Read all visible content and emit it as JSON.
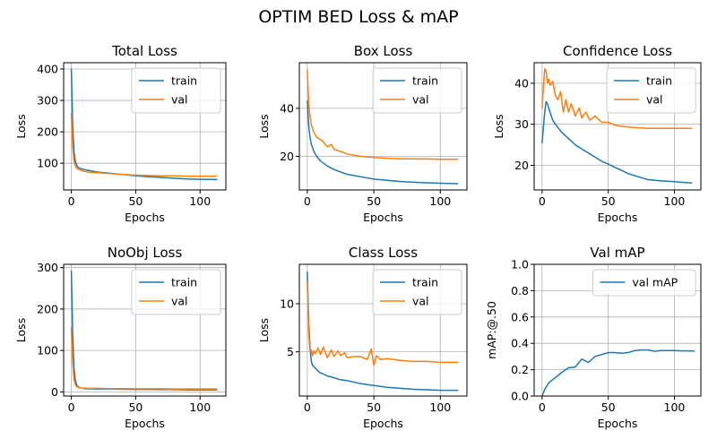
{
  "figure": {
    "title": "OPTIM BED Loss & mAP"
  },
  "colors": {
    "train": "#1f77b4",
    "val": "#ff7f0e"
  },
  "chart_data": [
    {
      "type": "line",
      "title": "Total Loss",
      "xlabel": "Epochs",
      "ylabel": "Loss",
      "xlim": [
        -6,
        120
      ],
      "ylim": [
        15,
        420
      ],
      "xticks": [
        0,
        50,
        100
      ],
      "yticks": [
        100,
        200,
        300,
        400
      ],
      "grid": true,
      "legend": "top-right",
      "series": [
        {
          "name": "train",
          "color": "#1f77b4",
          "x": [
            0,
            1,
            2,
            3,
            4,
            5,
            7,
            10,
            15,
            20,
            30,
            40,
            50,
            60,
            70,
            80,
            90,
            100,
            113
          ],
          "y": [
            400,
            220,
            140,
            108,
            95,
            88,
            83,
            80,
            76,
            72,
            68,
            64,
            60,
            57,
            55,
            52,
            50,
            49,
            48
          ]
        },
        {
          "name": "val",
          "color": "#ff7f0e",
          "x": [
            0,
            1,
            2,
            3,
            4,
            5,
            7,
            10,
            15,
            20,
            30,
            40,
            50,
            60,
            70,
            80,
            90,
            100,
            113
          ],
          "y": [
            258,
            150,
            108,
            92,
            85,
            82,
            78,
            74,
            71,
            70,
            67,
            64,
            62,
            61,
            60,
            60,
            59,
            59,
            59
          ]
        }
      ]
    },
    {
      "type": "line",
      "title": "Box Loss",
      "xlabel": "Epochs",
      "ylabel": "Loss",
      "xlim": [
        -6,
        120
      ],
      "ylim": [
        6,
        59
      ],
      "xticks": [
        0,
        50,
        100
      ],
      "yticks": [
        20,
        40
      ],
      "grid": true,
      "legend": "top-right",
      "series": [
        {
          "name": "train",
          "color": "#1f77b4",
          "x": [
            0,
            1,
            2,
            3,
            5,
            7,
            10,
            15,
            20,
            25,
            30,
            35,
            40,
            50,
            60,
            70,
            80,
            90,
            100,
            113
          ],
          "y": [
            43,
            33,
            28,
            25,
            22,
            20,
            18,
            16,
            14.5,
            13.5,
            12.5,
            12,
            11.5,
            10.5,
            10,
            9.5,
            9.2,
            9,
            8.8,
            8.6
          ]
        },
        {
          "name": "val",
          "color": "#ff7f0e",
          "x": [
            0,
            1,
            2,
            3,
            5,
            7,
            10,
            12,
            15,
            18,
            20,
            25,
            30,
            35,
            40,
            50,
            60,
            70,
            80,
            90,
            100,
            113
          ],
          "y": [
            56,
            42,
            37,
            33,
            30,
            28,
            27,
            26,
            24,
            25,
            23,
            22,
            21,
            20.5,
            20,
            19.5,
            19.2,
            19,
            19,
            18.9,
            18.8,
            18.8
          ]
        }
      ]
    },
    {
      "type": "line",
      "title": "Confidence Loss",
      "xlabel": "Epochs",
      "ylabel": "Loss",
      "xlim": [
        -6,
        120
      ],
      "ylim": [
        14,
        45
      ],
      "xticks": [
        0,
        50,
        100
      ],
      "yticks": [
        20,
        30,
        40
      ],
      "grid": true,
      "legend": "top-right",
      "series": [
        {
          "name": "train",
          "color": "#1f77b4",
          "x": [
            0,
            2,
            3,
            4,
            6,
            8,
            10,
            15,
            20,
            25,
            30,
            35,
            40,
            45,
            50,
            55,
            60,
            65,
            70,
            75,
            80,
            90,
            100,
            113
          ],
          "y": [
            25.5,
            33,
            35.5,
            35,
            33,
            31,
            30,
            28,
            26.5,
            25,
            24,
            23,
            22,
            21,
            20.3,
            19.5,
            18.8,
            18,
            17.5,
            17,
            16.5,
            16.2,
            16,
            15.7
          ]
        },
        {
          "name": "val",
          "color": "#ff7f0e",
          "x": [
            0,
            1,
            2,
            3,
            4,
            5,
            6,
            8,
            10,
            12,
            14,
            16,
            18,
            20,
            22,
            25,
            28,
            30,
            33,
            36,
            40,
            45,
            50,
            55,
            60,
            70,
            80,
            90,
            100,
            113
          ],
          "y": [
            34,
            39,
            43.5,
            43,
            40,
            41,
            39.5,
            40.5,
            37,
            36,
            38,
            33,
            36,
            33,
            35,
            32,
            34,
            31.5,
            33,
            31,
            32,
            30.5,
            30.5,
            29.8,
            29.5,
            29.2,
            29,
            29,
            29,
            29
          ]
        }
      ]
    },
    {
      "type": "line",
      "title": "NoObj Loss",
      "xlabel": "Epochs",
      "ylabel": "Loss",
      "xlim": [
        -6,
        120
      ],
      "ylim": [
        -10,
        308
      ],
      "xticks": [
        0,
        50,
        100
      ],
      "yticks": [
        0,
        100,
        200,
        300
      ],
      "grid": true,
      "legend": "top-right",
      "series": [
        {
          "name": "train",
          "color": "#1f77b4",
          "x": [
            0,
            1,
            2,
            3,
            4,
            5,
            6,
            8,
            10,
            15,
            20,
            30,
            40,
            50,
            60,
            70,
            80,
            90,
            100,
            113
          ],
          "y": [
            292,
            140,
            60,
            30,
            18,
            13,
            11,
            9,
            8,
            7.5,
            7,
            7,
            6.5,
            6,
            6,
            5.5,
            5.5,
            5,
            5,
            5
          ]
        },
        {
          "name": "val",
          "color": "#ff7f0e",
          "x": [
            0,
            1,
            2,
            3,
            4,
            5,
            6,
            8,
            10,
            15,
            20,
            30,
            40,
            50,
            60,
            70,
            80,
            90,
            100,
            113
          ],
          "y": [
            155,
            70,
            30,
            18,
            13,
            11,
            10,
            9,
            9,
            8.5,
            8.5,
            8,
            8,
            7.5,
            7.5,
            7.5,
            7,
            7,
            7,
            7
          ]
        }
      ]
    },
    {
      "type": "line",
      "title": "Class Loss",
      "xlabel": "Epochs",
      "ylabel": "Loss",
      "xlim": [
        -6,
        120
      ],
      "ylim": [
        0.4,
        14.1
      ],
      "xticks": [
        0,
        50,
        100
      ],
      "yticks": [
        5,
        10
      ],
      "grid": true,
      "legend": "top-right",
      "series": [
        {
          "name": "train",
          "color": "#1f77b4",
          "x": [
            0,
            1,
            2,
            3,
            4,
            6,
            8,
            10,
            15,
            20,
            25,
            30,
            40,
            50,
            60,
            70,
            80,
            90,
            100,
            113
          ],
          "y": [
            13.3,
            8,
            5.5,
            4,
            3.6,
            3.3,
            3,
            2.8,
            2.5,
            2.3,
            2.1,
            2,
            1.7,
            1.5,
            1.3,
            1.2,
            1.1,
            1.05,
            1,
            1
          ]
        },
        {
          "name": "val",
          "color": "#ff7f0e",
          "x": [
            0,
            1,
            2,
            3,
            4,
            5,
            6,
            8,
            10,
            12,
            15,
            18,
            20,
            23,
            25,
            28,
            30,
            35,
            40,
            45,
            48,
            50,
            52,
            55,
            60,
            70,
            80,
            90,
            100,
            113
          ],
          "y": [
            12.2,
            7,
            5,
            5.2,
            4.6,
            5.1,
            4.8,
            5.4,
            4.7,
            5.5,
            4.4,
            5.2,
            4.5,
            5.1,
            4.6,
            4.9,
            4.4,
            4.5,
            4.5,
            4.2,
            5.3,
            3.6,
            4.6,
            4.2,
            4.3,
            4.1,
            4,
            4,
            3.9,
            3.9
          ]
        }
      ]
    },
    {
      "type": "line",
      "title": "Val mAP",
      "xlabel": "Epochs",
      "ylabel": "mAP:@.50",
      "xlim": [
        -6,
        120
      ],
      "ylim": [
        0,
        1
      ],
      "xticks": [
        0,
        50,
        100
      ],
      "yticks": [
        0.0,
        0.2,
        0.4,
        0.6,
        0.8,
        1.0
      ],
      "grid": true,
      "legend": "top-right",
      "series": [
        {
          "name": "val mAP",
          "color": "#1f77b4",
          "x": [
            0,
            2,
            5,
            10,
            15,
            20,
            25,
            30,
            35,
            40,
            45,
            50,
            55,
            60,
            65,
            70,
            75,
            80,
            85,
            90,
            95,
            100,
            105,
            110,
            115
          ],
          "y": [
            0.0,
            0.05,
            0.1,
            0.14,
            0.18,
            0.215,
            0.22,
            0.28,
            0.255,
            0.3,
            0.315,
            0.33,
            0.33,
            0.325,
            0.33,
            0.345,
            0.35,
            0.35,
            0.34,
            0.345,
            0.345,
            0.345,
            0.343,
            0.343,
            0.342
          ]
        }
      ]
    }
  ]
}
